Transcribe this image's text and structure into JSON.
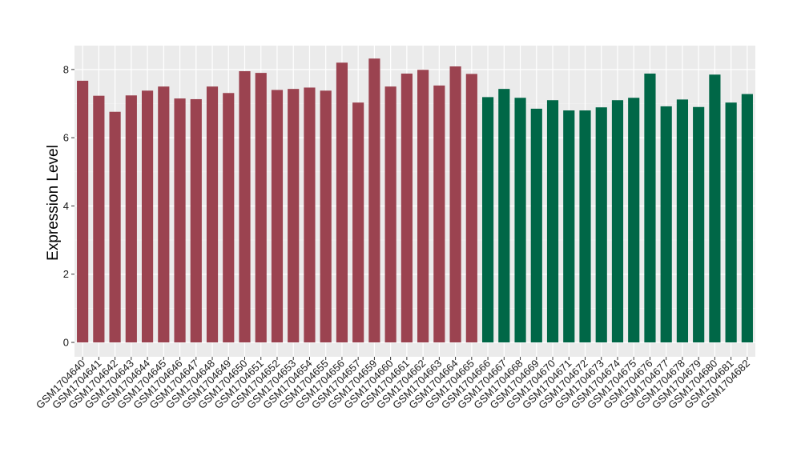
{
  "chart_data": {
    "type": "bar",
    "title": "",
    "xlabel": "",
    "ylabel": "Expression Level",
    "ylim": [
      0,
      8.7
    ],
    "yticks": [
      0,
      2,
      4,
      6,
      8
    ],
    "grid": true,
    "legend": "none",
    "colors": {
      "group_a": "#9B4350",
      "group_b": "#006747",
      "panel_bg": "#EBEBEB",
      "grid_major": "#FFFFFF",
      "grid_minor": "#F5F5F5"
    },
    "categories": [
      "GSM1704640",
      "GSM1704641",
      "GSM1704642",
      "GSM1704643",
      "GSM1704644",
      "GSM1704645",
      "GSM1704646",
      "GSM1704647",
      "GSM1704648",
      "GSM1704649",
      "GSM1704650",
      "GSM1704651",
      "GSM1704652",
      "GSM1704653",
      "GSM1704654",
      "GSM1704655",
      "GSM1704656",
      "GSM1704657",
      "GSM1704659",
      "GSM1704660",
      "GSM1704661",
      "GSM1704662",
      "GSM1704663",
      "GSM1704664",
      "GSM1704665",
      "GSM1704666",
      "GSM1704667",
      "GSM1704668",
      "GSM1704669",
      "GSM1704670",
      "GSM1704671",
      "GSM1704672",
      "GSM1704673",
      "GSM1704674",
      "GSM1704675",
      "GSM1704676",
      "GSM1704677",
      "GSM1704678",
      "GSM1704679",
      "GSM1704680",
      "GSM1704681",
      "GSM1704682"
    ],
    "values": [
      7.67,
      7.23,
      6.76,
      7.24,
      7.38,
      7.5,
      7.15,
      7.13,
      7.5,
      7.31,
      7.95,
      7.9,
      7.4,
      7.43,
      7.47,
      7.38,
      8.2,
      7.03,
      8.32,
      7.5,
      7.88,
      7.99,
      7.53,
      8.09,
      7.87,
      7.19,
      7.43,
      7.17,
      6.85,
      7.1,
      6.8,
      6.8,
      6.89,
      7.1,
      7.17,
      7.88,
      6.92,
      7.12,
      6.9,
      7.85,
      7.03,
      7.28
    ],
    "groups": [
      "a",
      "a",
      "a",
      "a",
      "a",
      "a",
      "a",
      "a",
      "a",
      "a",
      "a",
      "a",
      "a",
      "a",
      "a",
      "a",
      "a",
      "a",
      "a",
      "a",
      "a",
      "a",
      "a",
      "a",
      "a",
      "b",
      "b",
      "b",
      "b",
      "b",
      "b",
      "b",
      "b",
      "b",
      "b",
      "b",
      "b",
      "b",
      "b",
      "b",
      "b",
      "b"
    ]
  }
}
